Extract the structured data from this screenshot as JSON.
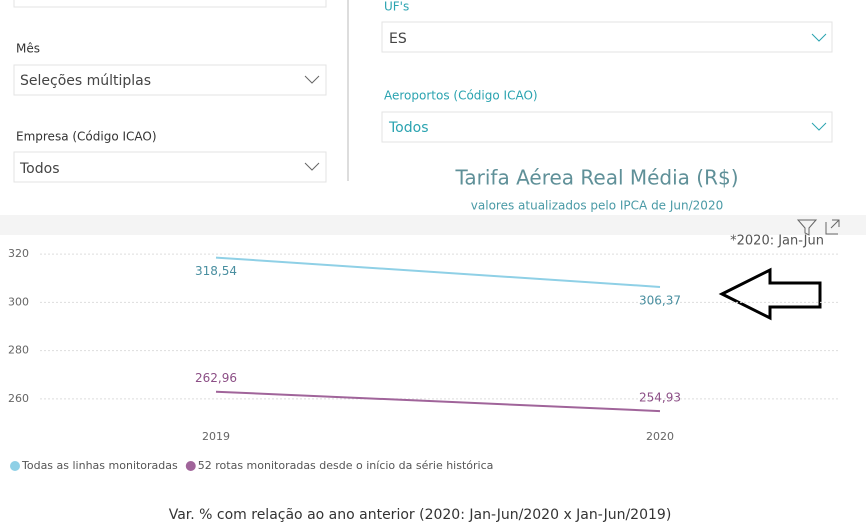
{
  "filters": [
    {
      "label": "Mês",
      "value": "Seleções múltiplas"
    },
    {
      "label": "Empresa (Código ICAO)",
      "value": "Todos"
    },
    {
      "label": "UF's",
      "value": "ES"
    },
    {
      "label": "Aeroportos (Código ICAO)",
      "value": "Todos"
    }
  ],
  "chart_data": {
    "type": "line",
    "title": "Tarifa Aérea Real Média (R$)",
    "subtitle": "valores atualizados pelo IPCA de Jun/2020",
    "annotation": "*2020: Jan-Jun",
    "categories": [
      "2019",
      "2020"
    ],
    "series": [
      {
        "name": "Todas as linhas monitoradas",
        "color": "#8fd0e6",
        "label_color": "#4a8fa0",
        "values": [
          318.54,
          306.37
        ],
        "value_labels": [
          "318,54",
          "306,37"
        ]
      },
      {
        "name": "52 rotas monitoradas desde o início da série histórica",
        "color": "#a0649a",
        "label_color": "#8c4f86",
        "values": [
          262.96,
          254.93
        ],
        "value_labels": [
          "262,96",
          "254,93"
        ]
      }
    ],
    "ylim": [
      250,
      325
    ],
    "yticks": [
      260,
      280,
      300,
      320
    ],
    "grid": true,
    "legend": "bottom-left"
  },
  "footer": "Var. % com relação ao ano anterior (2020: Jan-Jun/2020 x Jan-Jun/2019)"
}
